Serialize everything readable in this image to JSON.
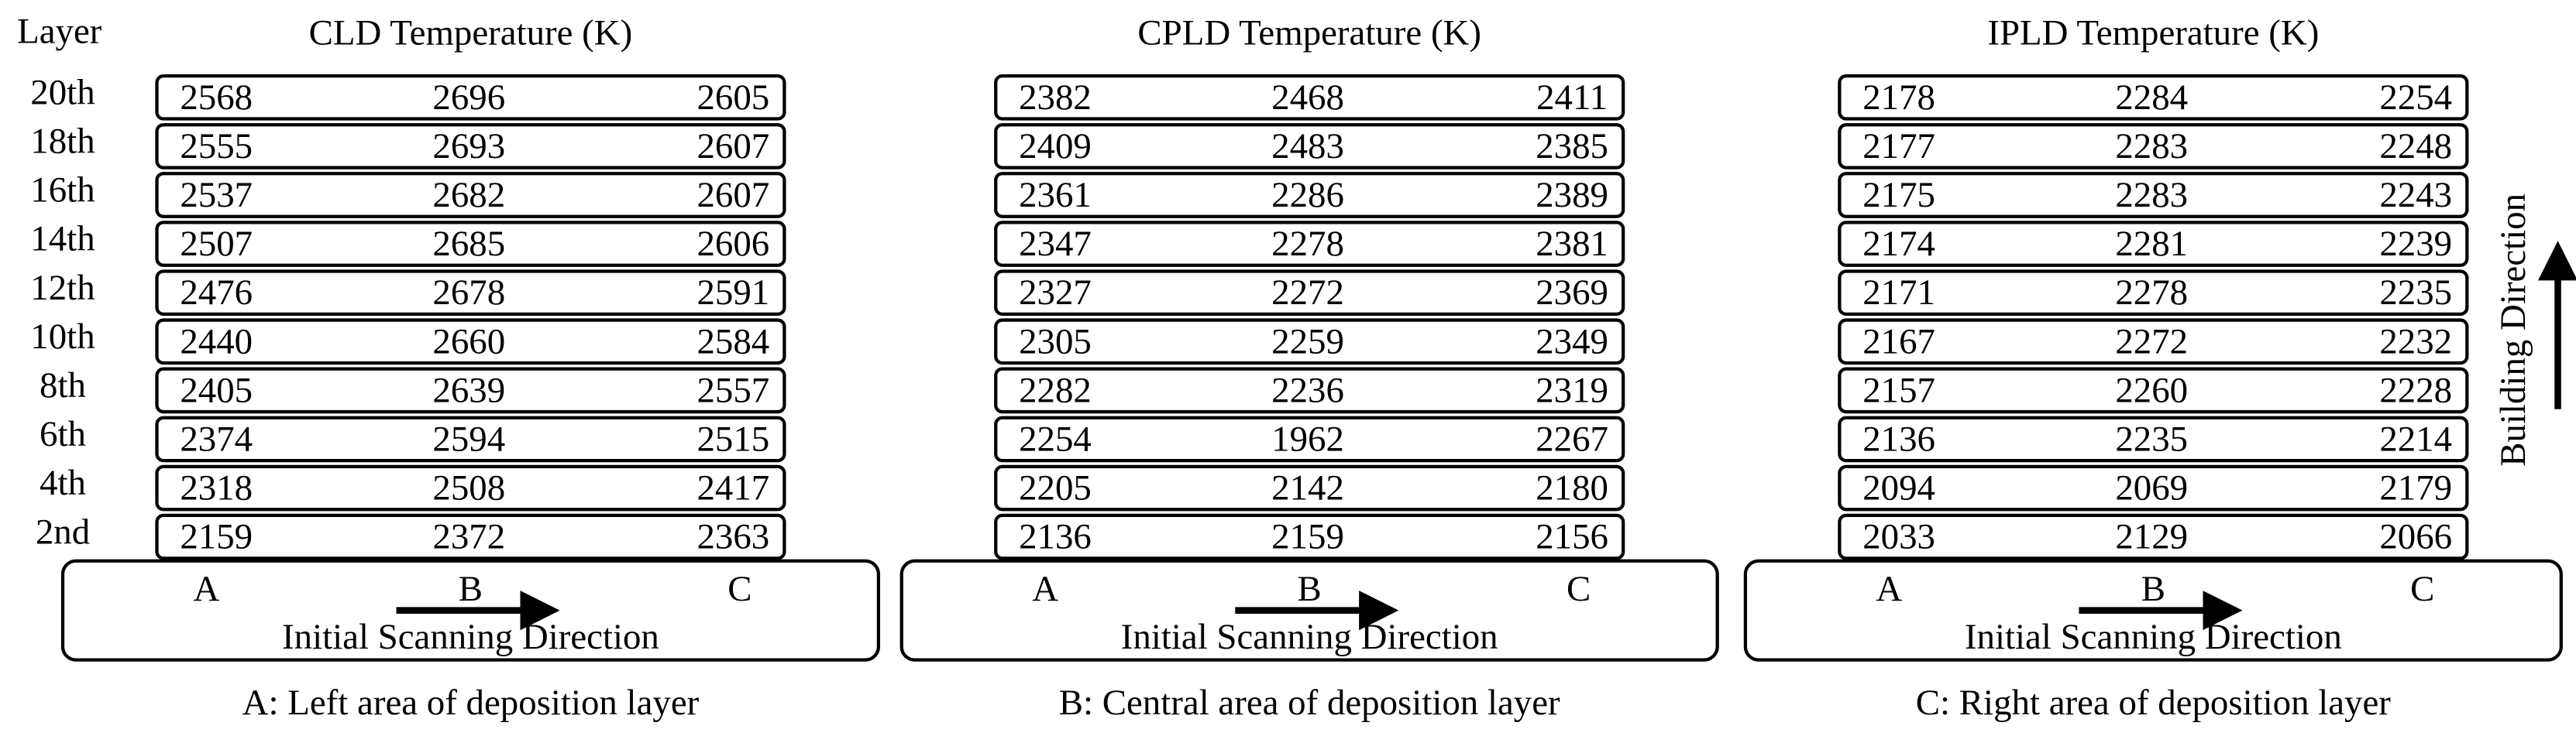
{
  "layer_header": "Layer",
  "layers": [
    "20th",
    "18th",
    "16th",
    "14th",
    "12th",
    "10th",
    "8th",
    "6th",
    "4th",
    "2nd"
  ],
  "panels": [
    {
      "title": "CLD Temperature (K)",
      "rows": [
        [
          2568,
          2696,
          2605
        ],
        [
          2555,
          2693,
          2607
        ],
        [
          2537,
          2682,
          2607
        ],
        [
          2507,
          2685,
          2606
        ],
        [
          2476,
          2678,
          2591
        ],
        [
          2440,
          2660,
          2584
        ],
        [
          2405,
          2639,
          2557
        ],
        [
          2374,
          2594,
          2515
        ],
        [
          2318,
          2508,
          2417
        ],
        [
          2159,
          2372,
          2363
        ]
      ],
      "base": {
        "labels": [
          "A",
          "B",
          "C"
        ],
        "direction": "Initial Scanning Direction"
      },
      "caption": "A: Left area of deposition layer"
    },
    {
      "title": "CPLD Temperature (K)",
      "rows": [
        [
          2382,
          2468,
          2411
        ],
        [
          2409,
          2483,
          2385
        ],
        [
          2361,
          2286,
          2389
        ],
        [
          2347,
          2278,
          2381
        ],
        [
          2327,
          2272,
          2369
        ],
        [
          2305,
          2259,
          2349
        ],
        [
          2282,
          2236,
          2319
        ],
        [
          2254,
          1962,
          2267
        ],
        [
          2205,
          2142,
          2180
        ],
        [
          2136,
          2159,
          2156
        ]
      ],
      "base": {
        "labels": [
          "A",
          "B",
          "C"
        ],
        "direction": "Initial Scanning Direction"
      },
      "caption": "B: Central area of deposition layer"
    },
    {
      "title": "IPLD Temperature (K)",
      "rows": [
        [
          2178,
          2284,
          2254
        ],
        [
          2177,
          2283,
          2248
        ],
        [
          2175,
          2283,
          2243
        ],
        [
          2174,
          2281,
          2239
        ],
        [
          2171,
          2278,
          2235
        ],
        [
          2167,
          2272,
          2232
        ],
        [
          2157,
          2260,
          2228
        ],
        [
          2136,
          2235,
          2214
        ],
        [
          2094,
          2069,
          2179
        ],
        [
          2033,
          2129,
          2066
        ]
      ],
      "base": {
        "labels": [
          "A",
          "B",
          "C"
        ],
        "direction": "Initial Scanning Direction"
      },
      "caption": "C: Right area of deposition layer"
    }
  ],
  "building_direction": "Building Direction"
}
